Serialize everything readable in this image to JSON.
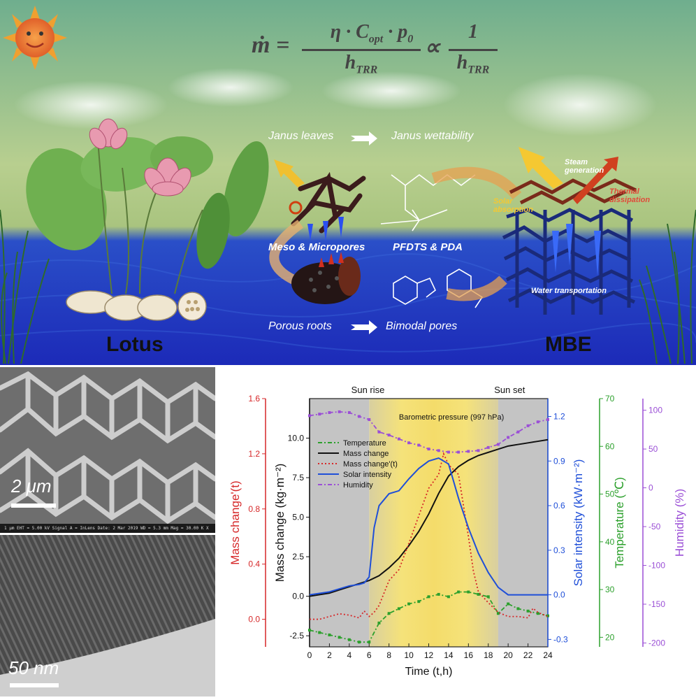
{
  "scene": {
    "equation": {
      "lhs": "ṁ =",
      "numerator": "η · C",
      "numerator_sub": "opt",
      "numerator_tail": " · p",
      "numerator_tail_sub": "0",
      "denominator": "h",
      "denominator_sub": "TRR",
      "prop": "∝",
      "rhs_numerator": "1",
      "rhs_denominator": "h",
      "rhs_denominator_sub": "TRR"
    },
    "left_label": "Lotus",
    "right_label": "MBE",
    "flow_top_left": "Janus leaves",
    "flow_top_right": "Janus wettability",
    "flow_bottom_left": "Porous roots",
    "flow_bottom_right": "Bimodal pores",
    "pores_label": "Meso & Micropores",
    "chem_label": "PFDTS & PDA",
    "steam_label": "Steam generation",
    "solar_label": "Solar absorption",
    "thermal_label": "Thermal dissipation",
    "water_label": "Water transportation",
    "colors": {
      "sky_top": "#6fae8e",
      "sky_mid": "#b8cf8f",
      "water": "#1f2fc8"
    }
  },
  "micrographs": {
    "top_scale": "2 μm",
    "bottom_scale": "50 nm",
    "top_meta": "1 μm   EHT = 5.00 kV   Signal A = InLens   Date: 2 Mar 2019   WD = 5.3 mm   Mag = 30.00 K X"
  },
  "chart_data": {
    "type": "line",
    "xlabel": "Time (t,h)",
    "xlim": [
      0,
      24
    ],
    "x_ticks": [
      "0",
      "2",
      "4",
      "6",
      "8",
      "10",
      "12",
      "14",
      "16",
      "18",
      "20",
      "22",
      "24"
    ],
    "top_annotations": [
      "Sun rise",
      "Sun set"
    ],
    "inner_note": "Barometric pressure (997 hPa)",
    "axes": {
      "mass_change_t": {
        "label": "Mass change'(t)",
        "color": "#d62728",
        "range": [
          -0.2,
          1.6
        ],
        "ticks": [
          "0.0",
          "0.4",
          "0.8",
          "1.2",
          "1.6"
        ]
      },
      "mass_change": {
        "label": "Mass change (kg·m⁻²)",
        "color": "#111111",
        "range": [
          -3.2,
          12.5
        ],
        "ticks": [
          "-2.5",
          "0.0",
          "2.5",
          "5.0",
          "7.5",
          "10.0"
        ]
      },
      "solar": {
        "label": "Solar intensity (kW·m⁻²)",
        "color": "#1f4fd8",
        "range": [
          -0.35,
          1.32
        ],
        "ticks": [
          "-0.3",
          "0.0",
          "0.3",
          "0.6",
          "0.9",
          "1.2"
        ]
      },
      "temperature": {
        "label": "Temperature (℃)",
        "color": "#2ca02c",
        "range": [
          18,
          70
        ],
        "ticks": [
          "20",
          "30",
          "40",
          "50",
          "60",
          "70"
        ]
      },
      "humidity": {
        "label": "Humidity (%)",
        "color": "#9b4fd6",
        "range": [
          -205,
          115
        ],
        "ticks": [
          "-200",
          "-150",
          "-100",
          "-50",
          "0",
          "50",
          "100"
        ]
      }
    },
    "legend": [
      "Temperature",
      "Mass change",
      "Mass change'(t)",
      "Solar intensity",
      "Humidity"
    ],
    "series": [
      {
        "name": "Temperature",
        "axis": "temperature",
        "style": "dash-dot-square",
        "x": [
          0,
          1,
          2,
          3,
          4,
          5,
          6,
          7,
          8,
          9,
          10,
          11,
          12,
          13,
          14,
          15,
          16,
          17,
          18,
          19,
          20,
          21,
          22,
          23,
          24
        ],
        "y": [
          21.5,
          21,
          20.5,
          20,
          19.5,
          19,
          19,
          23,
          25,
          26,
          27,
          27.5,
          28.5,
          29,
          28.5,
          29.5,
          29.5,
          29,
          28.5,
          25,
          27,
          26,
          25.5,
          25,
          24.5
        ]
      },
      {
        "name": "Mass change",
        "axis": "mass_change",
        "style": "solid",
        "x": [
          0,
          1,
          2,
          3,
          4,
          5,
          6,
          7,
          8,
          9,
          10,
          11,
          12,
          13,
          14,
          15,
          16,
          17,
          18,
          19,
          20,
          21,
          22,
          23,
          24
        ],
        "y": [
          0,
          0.1,
          0.2,
          0.4,
          0.6,
          0.8,
          1.0,
          1.3,
          1.8,
          2.4,
          3.2,
          4.1,
          5.2,
          6.5,
          7.6,
          8.2,
          8.6,
          8.9,
          9.1,
          9.3,
          9.5,
          9.6,
          9.7,
          9.8,
          9.9
        ]
      },
      {
        "name": "Mass change'(t)",
        "axis": "mass_change_t",
        "style": "dotted",
        "x": [
          0,
          1,
          2,
          3,
          4,
          5,
          5.5,
          6,
          6.5,
          7,
          8,
          9,
          10,
          11,
          12,
          13,
          13.5,
          14,
          15,
          16,
          16.5,
          17,
          18,
          19,
          20,
          21,
          22,
          22.5,
          23,
          24
        ],
        "y": [
          0,
          0,
          0.02,
          0.04,
          0.03,
          0.01,
          0.06,
          0.02,
          0.05,
          0.1,
          0.28,
          0.36,
          0.55,
          0.75,
          0.95,
          1.05,
          1.2,
          1.12,
          1.05,
          0.6,
          0.35,
          0.2,
          0.12,
          0.05,
          0.02,
          0.02,
          0.01,
          0.08,
          0.05,
          0.02
        ]
      },
      {
        "name": "Solar intensity",
        "axis": "solar",
        "style": "solid",
        "x": [
          0,
          1,
          2,
          3,
          4,
          5,
          5.5,
          6,
          6.5,
          7,
          8,
          9,
          10,
          11,
          12,
          12.5,
          13,
          14,
          15,
          16,
          17,
          18,
          19,
          20,
          21,
          22,
          23,
          24
        ],
        "y": [
          0,
          0.01,
          0.02,
          0.04,
          0.06,
          0.07,
          0.08,
          0.12,
          0.45,
          0.6,
          0.68,
          0.7,
          0.78,
          0.85,
          0.9,
          0.91,
          0.92,
          0.88,
          0.65,
          0.45,
          0.28,
          0.15,
          0.05,
          0.0,
          0.0,
          0.0,
          0.0,
          0.0
        ]
      },
      {
        "name": "Humidity",
        "axis": "humidity",
        "style": "dash-dot-square",
        "x": [
          0,
          1,
          2,
          3,
          4,
          5,
          6,
          7,
          8,
          9,
          10,
          11,
          12,
          13,
          14,
          15,
          16,
          17,
          18,
          19,
          20,
          21,
          22,
          23,
          24
        ],
        "y": [
          93,
          95,
          97,
          98,
          97,
          92,
          88,
          72,
          68,
          63,
          58,
          55,
          50,
          48,
          46,
          46,
          47,
          48,
          52,
          56,
          65,
          72,
          80,
          85,
          88
        ]
      }
    ]
  }
}
